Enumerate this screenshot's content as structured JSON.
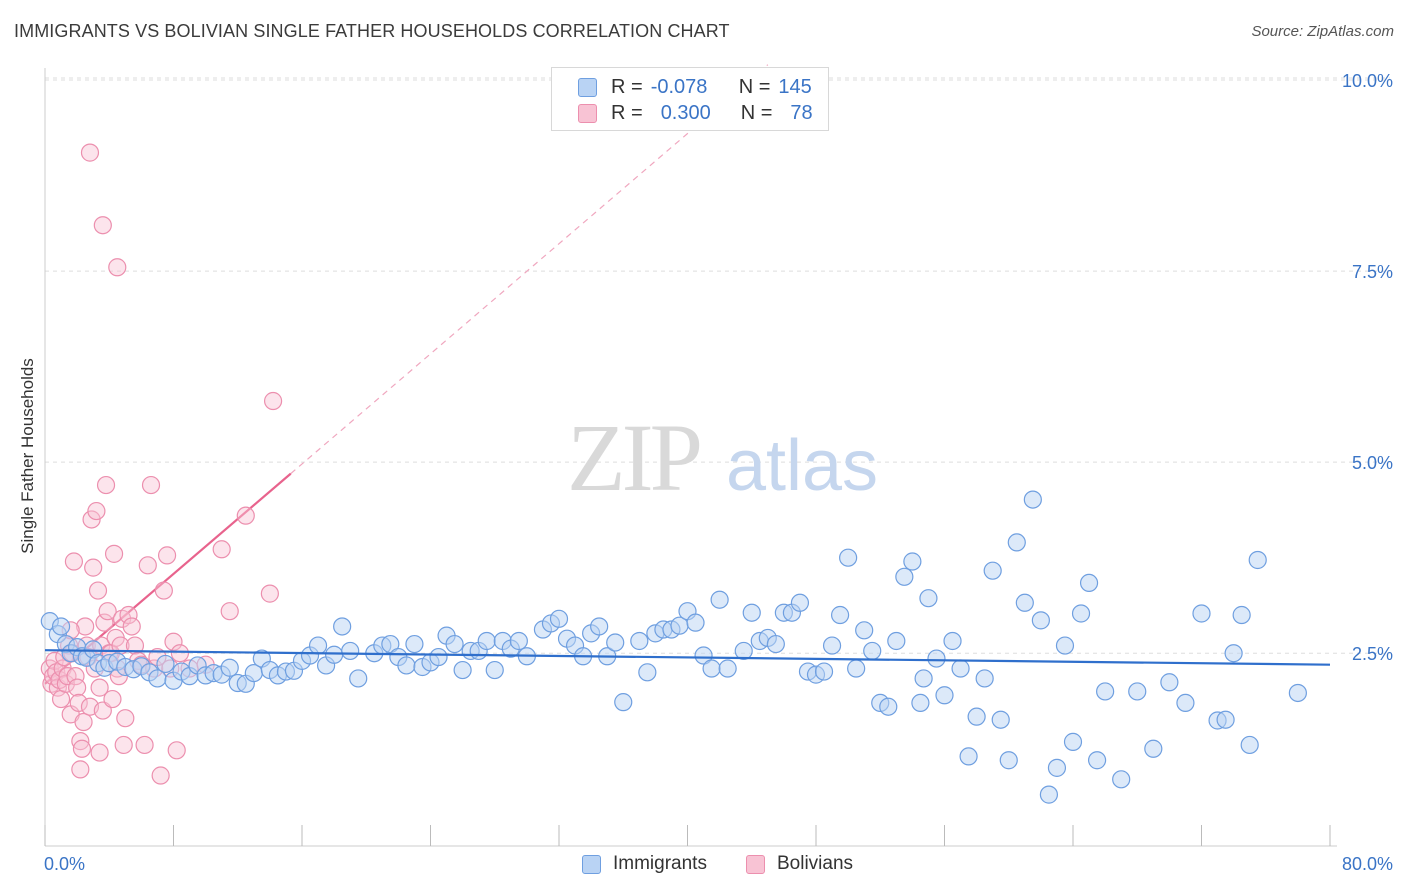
{
  "header": {
    "title": "IMMIGRANTS VS BOLIVIAN SINGLE FATHER HOUSEHOLDS CORRELATION CHART",
    "source": "Source: ZipAtlas.com"
  },
  "watermark": {
    "zip": "ZIP",
    "atlas": "atlas"
  },
  "legend_top": {
    "rows": [
      {
        "r_label": "R =",
        "r_value": "-0.078",
        "n_label": "N =",
        "n_value": "145",
        "color": "#6f9fe0"
      },
      {
        "r_label": "R =",
        "r_value": "0.300",
        "n_label": "N =",
        "n_value": "78",
        "color": "#ec8fae"
      }
    ]
  },
  "legend_bottom": {
    "items": [
      "Immigrants",
      "Bolivians"
    ]
  },
  "colors": {
    "blue_fill": "#b9d3f4",
    "blue_stroke": "#6f9fe0",
    "blue_line": "#2f6fcc",
    "pink_fill": "#f8c3d4",
    "pink_stroke": "#ec8fae",
    "pink_line": "#e8638d",
    "tick_label": "#3a74c6",
    "grid": "#dddddd"
  },
  "chart_data": {
    "type": "scatter",
    "title": "IMMIGRANTS VS BOLIVIAN SINGLE FATHER HOUSEHOLDS CORRELATION CHART",
    "xlabel": "",
    "ylabel": "Single Father Households",
    "xlim": [
      0,
      80
    ],
    "ylim": [
      0,
      10
    ],
    "x_tick_labels": [
      "0.0%",
      "80.0%"
    ],
    "y_ticks": [
      2.5,
      5.0,
      7.5,
      10.0
    ],
    "y_tick_labels": [
      "2.5%",
      "5.0%",
      "7.5%",
      "10.0%"
    ],
    "grid": true,
    "legend": "top-center",
    "series": [
      {
        "name": "Immigrants",
        "trend": {
          "x0": 0,
          "y0": 2.54,
          "x1": 80,
          "y1": 2.35
        },
        "points": [
          [
            0.3,
            2.92
          ],
          [
            0.8,
            2.75
          ],
          [
            1.0,
            2.85
          ],
          [
            1.3,
            2.62
          ],
          [
            1.6,
            2.5
          ],
          [
            2.0,
            2.58
          ],
          [
            2.3,
            2.46
          ],
          [
            2.6,
            2.44
          ],
          [
            3.0,
            2.55
          ],
          [
            3.3,
            2.37
          ],
          [
            3.7,
            2.31
          ],
          [
            4.0,
            2.37
          ],
          [
            4.5,
            2.39
          ],
          [
            5.0,
            2.32
          ],
          [
            5.5,
            2.29
          ],
          [
            6.0,
            2.33
          ],
          [
            6.5,
            2.25
          ],
          [
            7.0,
            2.17
          ],
          [
            7.5,
            2.36
          ],
          [
            8.0,
            2.14
          ],
          [
            8.5,
            2.26
          ],
          [
            9.0,
            2.2
          ],
          [
            9.5,
            2.34
          ],
          [
            10.0,
            2.21
          ],
          [
            10.5,
            2.24
          ],
          [
            11.0,
            2.22
          ],
          [
            11.5,
            2.31
          ],
          [
            12.0,
            2.11
          ],
          [
            12.5,
            2.1
          ],
          [
            13.0,
            2.24
          ],
          [
            13.5,
            2.43
          ],
          [
            14.0,
            2.28
          ],
          [
            14.5,
            2.21
          ],
          [
            15.0,
            2.26
          ],
          [
            15.5,
            2.27
          ],
          [
            16.0,
            2.4
          ],
          [
            16.5,
            2.47
          ],
          [
            17.0,
            2.6
          ],
          [
            17.5,
            2.34
          ],
          [
            18.0,
            2.48
          ],
          [
            18.5,
            2.85
          ],
          [
            19.0,
            2.53
          ],
          [
            19.5,
            2.17
          ],
          [
            20.5,
            2.5
          ],
          [
            21.0,
            2.6
          ],
          [
            21.5,
            2.62
          ],
          [
            22.0,
            2.45
          ],
          [
            22.5,
            2.34
          ],
          [
            23.0,
            2.62
          ],
          [
            23.5,
            2.32
          ],
          [
            24.0,
            2.38
          ],
          [
            24.5,
            2.45
          ],
          [
            25.0,
            2.73
          ],
          [
            25.5,
            2.62
          ],
          [
            26.0,
            2.28
          ],
          [
            26.5,
            2.53
          ],
          [
            27.0,
            2.53
          ],
          [
            27.5,
            2.66
          ],
          [
            28.0,
            2.28
          ],
          [
            28.5,
            2.66
          ],
          [
            29.0,
            2.56
          ],
          [
            29.5,
            2.66
          ],
          [
            30.0,
            2.46
          ],
          [
            31.0,
            2.81
          ],
          [
            31.5,
            2.89
          ],
          [
            32.0,
            2.95
          ],
          [
            32.5,
            2.69
          ],
          [
            33.0,
            2.6
          ],
          [
            33.5,
            2.46
          ],
          [
            34.0,
            2.76
          ],
          [
            34.5,
            2.85
          ],
          [
            35.0,
            2.46
          ],
          [
            35.5,
            2.64
          ],
          [
            36.0,
            1.86
          ],
          [
            37.0,
            2.66
          ],
          [
            37.5,
            2.25
          ],
          [
            38.0,
            2.76
          ],
          [
            38.5,
            2.81
          ],
          [
            39.0,
            2.81
          ],
          [
            39.5,
            2.86
          ],
          [
            40.0,
            3.05
          ],
          [
            40.5,
            2.9
          ],
          [
            41.0,
            2.47
          ],
          [
            41.5,
            2.3
          ],
          [
            42.0,
            3.2
          ],
          [
            42.5,
            2.3
          ],
          [
            43.5,
            2.53
          ],
          [
            44.0,
            3.03
          ],
          [
            44.5,
            2.66
          ],
          [
            45.0,
            2.7
          ],
          [
            45.5,
            2.62
          ],
          [
            46.0,
            3.03
          ],
          [
            46.5,
            3.03
          ],
          [
            47.0,
            3.16
          ],
          [
            47.5,
            2.26
          ],
          [
            48.0,
            2.22
          ],
          [
            48.5,
            2.26
          ],
          [
            49.0,
            2.6
          ],
          [
            49.5,
            3.0
          ],
          [
            50.0,
            3.75
          ],
          [
            50.5,
            2.3
          ],
          [
            51.0,
            2.8
          ],
          [
            51.5,
            2.53
          ],
          [
            52.0,
            1.85
          ],
          [
            52.5,
            1.8
          ],
          [
            53.0,
            2.66
          ],
          [
            53.5,
            3.5
          ],
          [
            54.0,
            3.7
          ],
          [
            54.5,
            1.85
          ],
          [
            54.7,
            2.17
          ],
          [
            55.0,
            3.22
          ],
          [
            55.5,
            2.43
          ],
          [
            56.0,
            1.95
          ],
          [
            56.5,
            2.66
          ],
          [
            57.0,
            2.3
          ],
          [
            57.5,
            1.15
          ],
          [
            58.0,
            1.67
          ],
          [
            58.5,
            2.17
          ],
          [
            59.0,
            3.58
          ],
          [
            59.5,
            1.63
          ],
          [
            60.0,
            1.1
          ],
          [
            60.5,
            3.95
          ],
          [
            61.0,
            3.16
          ],
          [
            61.5,
            4.51
          ],
          [
            62.0,
            2.93
          ],
          [
            62.5,
            0.65
          ],
          [
            63.0,
            1.0
          ],
          [
            63.5,
            2.6
          ],
          [
            64.0,
            1.34
          ],
          [
            64.5,
            3.02
          ],
          [
            65.0,
            3.42
          ],
          [
            65.5,
            1.1
          ],
          [
            66.0,
            2.0
          ],
          [
            67.0,
            0.85
          ],
          [
            68.0,
            2.0
          ],
          [
            69.0,
            1.25
          ],
          [
            70.0,
            2.12
          ],
          [
            71.0,
            1.85
          ],
          [
            72.0,
            3.02
          ],
          [
            73.0,
            1.62
          ],
          [
            73.5,
            1.63
          ],
          [
            74.0,
            2.5
          ],
          [
            74.5,
            3.0
          ],
          [
            75.0,
            1.3
          ],
          [
            75.5,
            3.72
          ],
          [
            78.0,
            1.98
          ]
        ]
      },
      {
        "name": "Bolivians",
        "trend": {
          "x0": 0,
          "y0": 2.1,
          "x1": 15.3,
          "y1": 4.85,
          "dashed_to": {
            "x": 45,
            "y": 10.2
          }
        },
        "points": [
          [
            0.3,
            2.3
          ],
          [
            0.4,
            2.1
          ],
          [
            0.5,
            2.2
          ],
          [
            0.6,
            2.4
          ],
          [
            0.7,
            2.25
          ],
          [
            0.8,
            2.05
          ],
          [
            0.9,
            2.15
          ],
          [
            1.0,
            1.9
          ],
          [
            1.1,
            2.3
          ],
          [
            1.2,
            2.45
          ],
          [
            1.3,
            2.1
          ],
          [
            1.4,
            2.2
          ],
          [
            1.5,
            2.6
          ],
          [
            1.6,
            1.7
          ],
          [
            1.7,
            2.5
          ],
          [
            1.8,
            3.7
          ],
          [
            1.9,
            2.2
          ],
          [
            2.0,
            2.05
          ],
          [
            2.1,
            1.85
          ],
          [
            2.2,
            1.35
          ],
          [
            2.3,
            1.25
          ],
          [
            2.4,
            1.6
          ],
          [
            2.5,
            2.85
          ],
          [
            2.6,
            2.6
          ],
          [
            2.7,
            2.45
          ],
          [
            2.8,
            1.8
          ],
          [
            2.9,
            4.25
          ],
          [
            3.0,
            3.62
          ],
          [
            3.1,
            2.3
          ],
          [
            3.2,
            4.36
          ],
          [
            3.3,
            3.32
          ],
          [
            3.4,
            2.05
          ],
          [
            3.5,
            2.6
          ],
          [
            3.6,
            1.75
          ],
          [
            3.7,
            2.9
          ],
          [
            3.8,
            4.7
          ],
          [
            3.9,
            3.05
          ],
          [
            4.0,
            2.5
          ],
          [
            4.1,
            2.5
          ],
          [
            4.2,
            1.9
          ],
          [
            4.3,
            3.8
          ],
          [
            4.4,
            2.7
          ],
          [
            4.5,
            2.3
          ],
          [
            4.6,
            2.2
          ],
          [
            4.7,
            2.6
          ],
          [
            4.8,
            2.95
          ],
          [
            5.0,
            1.65
          ],
          [
            5.2,
            3.0
          ],
          [
            5.4,
            2.85
          ],
          [
            5.6,
            2.6
          ],
          [
            5.8,
            2.4
          ],
          [
            6.0,
            2.35
          ],
          [
            6.2,
            1.3
          ],
          [
            6.4,
            3.65
          ],
          [
            6.6,
            4.7
          ],
          [
            6.8,
            2.3
          ],
          [
            7.0,
            2.45
          ],
          [
            7.2,
            0.9
          ],
          [
            7.4,
            3.32
          ],
          [
            7.6,
            3.78
          ],
          [
            7.8,
            2.3
          ],
          [
            8.0,
            2.65
          ],
          [
            8.2,
            1.23
          ],
          [
            8.4,
            2.5
          ],
          [
            9.0,
            2.3
          ],
          [
            10.0,
            2.35
          ],
          [
            11.0,
            3.86
          ],
          [
            11.5,
            3.05
          ],
          [
            12.5,
            4.3
          ],
          [
            14.0,
            3.28
          ],
          [
            14.2,
            5.8
          ],
          [
            2.8,
            9.05
          ],
          [
            3.6,
            8.1
          ],
          [
            4.5,
            7.55
          ],
          [
            1.6,
            2.8
          ],
          [
            2.2,
            0.98
          ],
          [
            4.9,
            1.3
          ],
          [
            3.4,
            1.2
          ]
        ]
      }
    ]
  }
}
